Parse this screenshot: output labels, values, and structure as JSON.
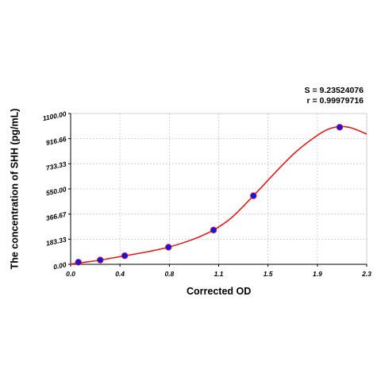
{
  "chart_data": {
    "type": "scatter",
    "xlabel": "Corrected OD",
    "ylabel": "The concentration of SHH (pg/mL)",
    "xlim": [
      0,
      2.3
    ],
    "ylim": [
      0,
      1100
    ],
    "x_ticks": [
      "0.0",
      "0.4",
      "0.8",
      "1.1",
      "1.5",
      "1.9",
      "2.3"
    ],
    "x_tick_values": [
      0,
      0.383,
      0.767,
      1.15,
      1.533,
      1.917,
      2.3
    ],
    "y_ticks": [
      "0.00",
      "183.33",
      "366.67",
      "550.00",
      "733.33",
      "916.66",
      "1100.00"
    ],
    "y_tick_values": [
      0,
      183.33,
      366.67,
      550.0,
      733.33,
      916.66,
      1100.0
    ],
    "grid": true,
    "points": [
      {
        "x": 0.06,
        "y": 15.6
      },
      {
        "x": 0.23,
        "y": 31.2
      },
      {
        "x": 0.42,
        "y": 62.5
      },
      {
        "x": 0.76,
        "y": 125
      },
      {
        "x": 1.11,
        "y": 250
      },
      {
        "x": 1.42,
        "y": 500
      },
      {
        "x": 2.09,
        "y": 1000
      }
    ],
    "fit_curve": [
      {
        "x": 0.0,
        "y": 2
      },
      {
        "x": 0.1,
        "y": 14
      },
      {
        "x": 0.23,
        "y": 31
      },
      {
        "x": 0.42,
        "y": 62
      },
      {
        "x": 0.6,
        "y": 92
      },
      {
        "x": 0.76,
        "y": 125
      },
      {
        "x": 0.95,
        "y": 182
      },
      {
        "x": 1.11,
        "y": 250
      },
      {
        "x": 1.25,
        "y": 340
      },
      {
        "x": 1.42,
        "y": 500
      },
      {
        "x": 1.6,
        "y": 680
      },
      {
        "x": 1.75,
        "y": 820
      },
      {
        "x": 1.9,
        "y": 930
      },
      {
        "x": 2.0,
        "y": 985
      },
      {
        "x": 2.09,
        "y": 1005
      },
      {
        "x": 2.18,
        "y": 995
      },
      {
        "x": 2.3,
        "y": 950
      }
    ],
    "point_color": "#1414e6",
    "curve_color": "#e01b1b",
    "grid_color": "#c8c8c8",
    "stats": {
      "s": "S = 9.23524076",
      "r": "r = 0.99979716"
    }
  }
}
